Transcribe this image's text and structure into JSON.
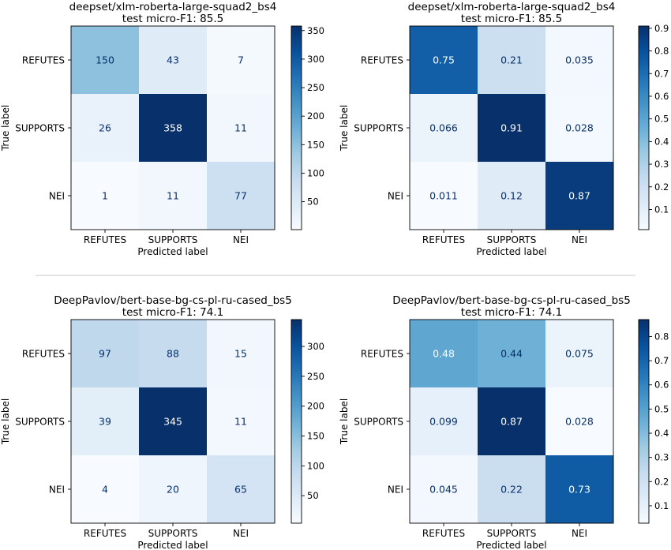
{
  "chart_data": [
    {
      "type": "heatmap",
      "title": "deepset/xlm-roberta-large-squad2_bs4",
      "subtitle": "test micro-F1: 85.5",
      "xlabel": "Predicted label",
      "ylabel": "True label",
      "categories": [
        "REFUTES",
        "SUPPORTS",
        "NEI"
      ],
      "values": [
        [
          150,
          43,
          7
        ],
        [
          26,
          358,
          11
        ],
        [
          1,
          11,
          77
        ]
      ],
      "value_labels": [
        [
          "150",
          "43",
          "7"
        ],
        [
          "26",
          "358",
          "11"
        ],
        [
          "1",
          "11",
          "77"
        ]
      ],
      "colorscale": "Blues",
      "vmin": 1,
      "vmax": 358,
      "colorbar_ticks": [
        50,
        100,
        150,
        200,
        250,
        300,
        350
      ],
      "colorbar_tick_labels": [
        "50",
        "100",
        "150",
        "200",
        "250",
        "300",
        "350"
      ]
    },
    {
      "type": "heatmap",
      "title": "deepset/xlm-roberta-large-squad2_bs4",
      "subtitle": "test micro-F1: 85.5",
      "xlabel": "Predicted label",
      "ylabel": "True label",
      "categories": [
        "REFUTES",
        "SUPPORTS",
        "NEI"
      ],
      "values": [
        [
          0.75,
          0.21,
          0.035
        ],
        [
          0.066,
          0.91,
          0.028
        ],
        [
          0.011,
          0.12,
          0.87
        ]
      ],
      "value_labels": [
        [
          "0.75",
          "0.21",
          "0.035"
        ],
        [
          "0.066",
          "0.91",
          "0.028"
        ],
        [
          "0.011",
          "0.12",
          "0.87"
        ]
      ],
      "colorscale": "Blues",
      "vmin": 0.011,
      "vmax": 0.91,
      "colorbar_ticks": [
        0.1,
        0.2,
        0.3,
        0.4,
        0.5,
        0.6,
        0.7,
        0.8,
        0.9
      ],
      "colorbar_tick_labels": [
        "0.1",
        "0.2",
        "0.3",
        "0.4",
        "0.5",
        "0.6",
        "0.7",
        "0.8",
        "0.9"
      ]
    },
    {
      "type": "heatmap",
      "title": "DeepPavlov/bert-base-bg-cs-pl-ru-cased_bs5",
      "subtitle": "test micro-F1: 74.1",
      "xlabel": "Predicted label",
      "ylabel": "True label",
      "categories": [
        "REFUTES",
        "SUPPORTS",
        "NEI"
      ],
      "values": [
        [
          97,
          88,
          15
        ],
        [
          39,
          345,
          11
        ],
        [
          4,
          20,
          65
        ]
      ],
      "value_labels": [
        [
          "97",
          "88",
          "15"
        ],
        [
          "39",
          "345",
          "11"
        ],
        [
          "4",
          "20",
          "65"
        ]
      ],
      "colorscale": "Blues",
      "vmin": 4,
      "vmax": 345,
      "colorbar_ticks": [
        50,
        100,
        150,
        200,
        250,
        300
      ],
      "colorbar_tick_labels": [
        "50",
        "100",
        "150",
        "200",
        "250",
        "300"
      ]
    },
    {
      "type": "heatmap",
      "title": "DeepPavlov/bert-base-bg-cs-pl-ru-cased_bs5",
      "subtitle": "test micro-F1: 74.1",
      "xlabel": "Predicted label",
      "ylabel": "True label",
      "categories": [
        "REFUTES",
        "SUPPORTS",
        "NEI"
      ],
      "values": [
        [
          0.48,
          0.44,
          0.075
        ],
        [
          0.099,
          0.87,
          0.028
        ],
        [
          0.045,
          0.22,
          0.73
        ]
      ],
      "value_labels": [
        [
          "0.48",
          "0.44",
          "0.075"
        ],
        [
          "0.099",
          "0.87",
          "0.028"
        ],
        [
          "0.045",
          "0.22",
          "0.73"
        ]
      ],
      "colorscale": "Blues",
      "vmin": 0.028,
      "vmax": 0.87,
      "colorbar_ticks": [
        0.1,
        0.2,
        0.3,
        0.4,
        0.5,
        0.6,
        0.7,
        0.8
      ],
      "colorbar_tick_labels": [
        "0.1",
        "0.2",
        "0.3",
        "0.4",
        "0.5",
        "0.6",
        "0.7",
        "0.8"
      ]
    }
  ]
}
